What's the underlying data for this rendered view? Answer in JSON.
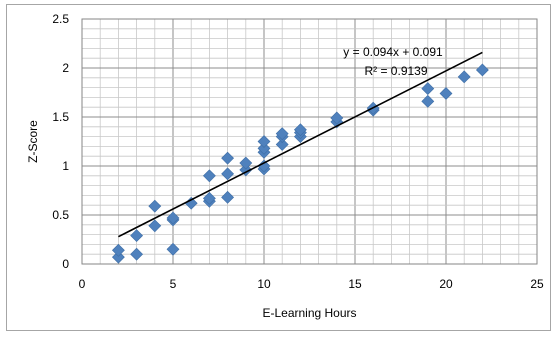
{
  "chart_data": {
    "type": "scatter",
    "title": "",
    "xlabel": "E-Learning Hours",
    "ylabel": "Z-Score",
    "xlim": [
      0,
      25
    ],
    "ylim": [
      0,
      2.5
    ],
    "x_major_step": 5,
    "y_major_step": 0.5,
    "x_minor_step": 1,
    "y_minor_step": 0.1,
    "grid": true,
    "legend": "none",
    "x_tick_labels": [
      "0",
      "5",
      "10",
      "15",
      "20",
      "25"
    ],
    "y_tick_labels": [
      "0",
      "0.5",
      "1",
      "1.5",
      "2",
      "2.5"
    ],
    "marker_color": "#4f81bd",
    "marker": "diamond",
    "series": [
      {
        "points": [
          [
            2,
            0.07
          ],
          [
            2,
            0.14
          ],
          [
            3,
            0.1
          ],
          [
            3,
            0.29
          ],
          [
            4,
            0.39
          ],
          [
            4,
            0.59
          ],
          [
            5,
            0.15
          ],
          [
            5,
            0.45
          ],
          [
            5,
            0.47
          ],
          [
            6,
            0.62
          ],
          [
            7,
            0.64
          ],
          [
            7,
            0.67
          ],
          [
            7,
            0.9
          ],
          [
            8,
            0.68
          ],
          [
            8,
            0.92
          ],
          [
            8,
            1.08
          ],
          [
            9,
            0.96
          ],
          [
            9,
            1.03
          ],
          [
            10,
            0.97
          ],
          [
            10,
            1.0
          ],
          [
            10,
            1.14
          ],
          [
            10,
            1.18
          ],
          [
            10,
            1.25
          ],
          [
            11,
            1.22
          ],
          [
            11,
            1.3
          ],
          [
            11,
            1.33
          ],
          [
            12,
            1.3
          ],
          [
            12,
            1.34
          ],
          [
            12,
            1.37
          ],
          [
            14,
            1.45
          ],
          [
            14,
            1.49
          ],
          [
            16,
            1.57
          ],
          [
            16,
            1.59
          ],
          [
            19,
            1.66
          ],
          [
            19,
            1.79
          ],
          [
            20,
            1.74
          ],
          [
            21,
            1.91
          ],
          [
            22,
            1.98
          ]
        ]
      }
    ],
    "trendline": {
      "type": "linear",
      "slope": 0.094,
      "intercept": 0.091,
      "x_range": [
        2,
        22
      ],
      "color": "#000000",
      "equation_text": "y = 0.094x + 0.091",
      "r2_text": "R² = 0.9139"
    }
  }
}
